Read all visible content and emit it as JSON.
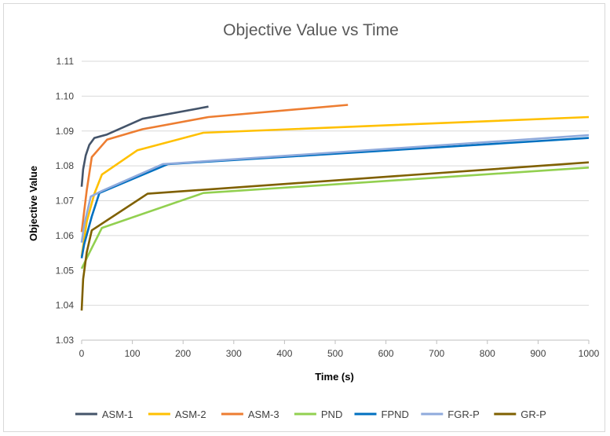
{
  "chart_data": {
    "type": "line",
    "title": "Objective Value vs Time",
    "xlabel": "Time (s)",
    "ylabel": "Objective Value",
    "xlim": [
      0,
      1000
    ],
    "ylim": [
      1.03,
      1.11
    ],
    "xticks": [
      0,
      100,
      200,
      300,
      400,
      500,
      600,
      700,
      800,
      900,
      1000
    ],
    "yticks": [
      "1.03",
      "1.04",
      "1.05",
      "1.06",
      "1.07",
      "1.08",
      "1.09",
      "1.10",
      "1.11"
    ],
    "grid": "horizontal",
    "legend_position": "bottom",
    "series": [
      {
        "name": "ASM-1",
        "color": "#44546a",
        "points": [
          [
            0,
            1.074
          ],
          [
            3,
            1.079
          ],
          [
            8,
            1.083
          ],
          [
            15,
            1.086
          ],
          [
            25,
            1.088
          ],
          [
            50,
            1.089
          ],
          [
            120,
            1.0935
          ],
          [
            250,
            1.097
          ]
        ]
      },
      {
        "name": "ASM-2",
        "color": "#ffc000",
        "points": [
          [
            0,
            1.054
          ],
          [
            10,
            1.064
          ],
          [
            25,
            1.072
          ],
          [
            40,
            1.0775
          ],
          [
            110,
            1.0845
          ],
          [
            240,
            1.0895
          ],
          [
            1000,
            1.094
          ]
        ]
      },
      {
        "name": "ASM-3",
        "color": "#ed7d31",
        "points": [
          [
            0,
            1.061
          ],
          [
            10,
            1.073
          ],
          [
            20,
            1.0825
          ],
          [
            50,
            1.0875
          ],
          [
            120,
            1.0905
          ],
          [
            250,
            1.094
          ],
          [
            525,
            1.0975
          ]
        ]
      },
      {
        "name": "PND",
        "color": "#92d050",
        "points": [
          [
            0,
            1.0505
          ],
          [
            5,
            1.052
          ],
          [
            15,
            1.055
          ],
          [
            40,
            1.0622
          ],
          [
            240,
            1.0722
          ],
          [
            1000,
            1.0795
          ]
        ]
      },
      {
        "name": "FPND",
        "color": "#0070c0",
        "points": [
          [
            0,
            1.0535
          ],
          [
            5,
            1.0575
          ],
          [
            20,
            1.0655
          ],
          [
            35,
            1.0722
          ],
          [
            170,
            1.0805
          ],
          [
            1000,
            1.088
          ]
        ]
      },
      {
        "name": "FGR-P",
        "color": "#8faadc",
        "points": [
          [
            0,
            1.058
          ],
          [
            5,
            1.063
          ],
          [
            18,
            1.0712
          ],
          [
            40,
            1.0728
          ],
          [
            160,
            1.0805
          ],
          [
            1000,
            1.0888
          ]
        ]
      },
      {
        "name": "GR-P",
        "color": "#7f6000",
        "points": [
          [
            0,
            1.0385
          ],
          [
            3,
            1.0475
          ],
          [
            10,
            1.0552
          ],
          [
            20,
            1.0615
          ],
          [
            130,
            1.072
          ],
          [
            1000,
            1.081
          ]
        ]
      }
    ]
  }
}
